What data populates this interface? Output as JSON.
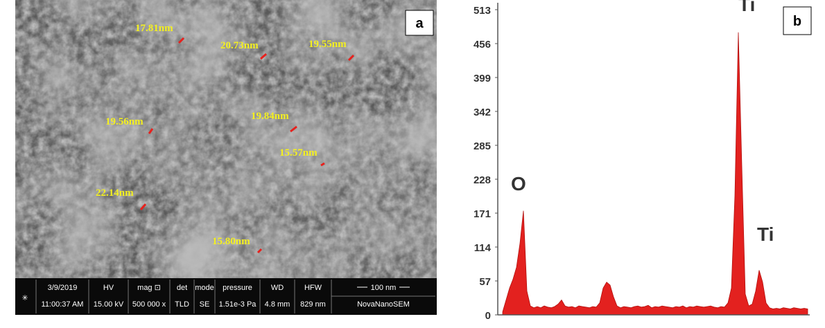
{
  "sem_panel": {
    "panel_label": "a",
    "size_labels": [
      "17.81nm",
      "20.73nm",
      "19.55nm",
      "19.56nm",
      "19.84nm",
      "15.57nm",
      "22.14nm",
      "15.80nm"
    ],
    "info_bar": {
      "top_row": [
        "3/9/2019",
        "HV",
        "mag ⊡",
        "det",
        "mode",
        "pressure",
        "WD",
        "HFW"
      ],
      "bottom_row": [
        "11:00:37 AM",
        "15.00 kV",
        "500 000 x",
        "TLD",
        "SE",
        "1.51e-3 Pa",
        "4.8 mm",
        "829 nm"
      ],
      "scale_bar": "100 nm",
      "instrument": "NovaNanoSEM"
    }
  },
  "chart_data": {
    "type": "area",
    "panel_label": "b",
    "color": "#e3211f",
    "values": [
      5,
      25,
      45,
      60,
      80,
      120,
      175,
      40,
      15,
      12,
      14,
      12,
      15,
      13,
      12,
      14,
      18,
      25,
      15,
      13,
      14,
      12,
      15,
      14,
      13,
      12,
      14,
      13,
      20,
      45,
      55,
      50,
      30,
      15,
      12,
      14,
      13,
      12,
      14,
      15,
      13,
      14,
      16,
      12,
      14,
      13,
      15,
      14,
      13,
      12,
      14,
      13,
      15,
      12,
      14,
      13,
      15,
      14,
      13,
      14,
      15,
      13,
      12,
      14,
      13,
      20,
      45,
      200,
      475,
      250,
      35,
      15,
      18,
      40,
      75,
      55,
      20,
      12,
      10,
      11,
      10,
      12,
      11,
      10,
      12,
      11,
      10,
      11,
      10
    ],
    "ylim": [
      0,
      513
    ],
    "yticks": [
      0,
      57,
      114,
      171,
      228,
      285,
      342,
      399,
      456,
      513
    ],
    "annotations": [
      "O",
      "Ti",
      "Ti"
    ]
  }
}
